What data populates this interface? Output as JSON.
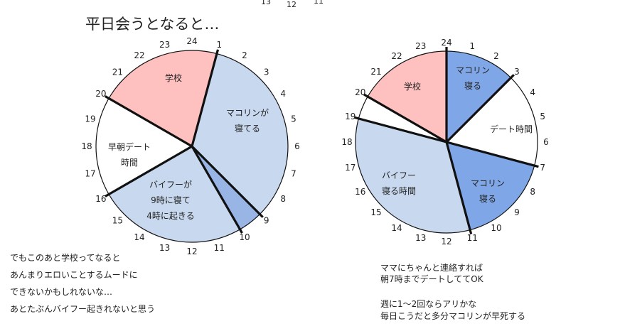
{
  "title": "平日会うとなると…",
  "top_numbers": [
    "13",
    "12",
    "11"
  ],
  "colors": {
    "pink": "#ffc0c0",
    "light_blue": "#c8d8ee",
    "blue": "#98b5e6",
    "strong_blue": "#7fa6e6",
    "white": "#ffffff",
    "line": "#111111"
  },
  "chart_data": [
    {
      "type": "pie",
      "title": "",
      "dial_hours": [
        "1",
        "2",
        "3",
        "4",
        "5",
        "6",
        "7",
        "8",
        "9",
        "10",
        "11",
        "12",
        "13",
        "14",
        "15",
        "16",
        "17",
        "18",
        "19",
        "20",
        "21",
        "22",
        "23",
        "24"
      ],
      "slices": [
        {
          "label": [
            "マコリンが",
            "寝てる"
          ],
          "start_hour": 1,
          "end_hour": 9,
          "color": "light_blue"
        },
        {
          "label": [],
          "start_hour": 9,
          "end_hour": 10,
          "color": "blue"
        },
        {
          "label": [
            "バイフーが",
            "9時に寝て",
            "4時に起きる"
          ],
          "start_hour": 10,
          "end_hour": 16,
          "color": "light_blue"
        },
        {
          "label": [
            "早朝デート",
            "時間"
          ],
          "start_hour": 16,
          "end_hour": 20,
          "color": "white"
        },
        {
          "label": [
            "学校"
          ],
          "start_hour": 20,
          "end_hour": 25,
          "color": "pink"
        }
      ],
      "divider_hours": [
        1,
        9,
        10,
        16,
        20
      ]
    },
    {
      "type": "pie",
      "title": "",
      "dial_hours": [
        "1",
        "2",
        "3",
        "4",
        "5",
        "6",
        "7",
        "8",
        "9",
        "10",
        "11",
        "12",
        "13",
        "14",
        "15",
        "16",
        "17",
        "18",
        "19",
        "20",
        "21",
        "22",
        "23",
        "24"
      ],
      "slices": [
        {
          "label": [
            "マコリン",
            "寝る"
          ],
          "start_hour": 0,
          "end_hour": 3,
          "color": "strong_blue"
        },
        {
          "label": [
            "デート時間"
          ],
          "start_hour": 3,
          "end_hour": 7,
          "color": "white"
        },
        {
          "label": [
            "マコリン",
            "寝る"
          ],
          "start_hour": 7,
          "end_hour": 11,
          "color": "strong_blue"
        },
        {
          "label": [
            "バイフー",
            "寝る時間"
          ],
          "start_hour": 11,
          "end_hour": 19,
          "color": "light_blue"
        },
        {
          "label": [],
          "start_hour": 19,
          "end_hour": 20,
          "color": "white"
        },
        {
          "label": [
            "学校"
          ],
          "start_hour": 20,
          "end_hour": 24,
          "color": "pink"
        }
      ],
      "divider_hours": [
        0,
        3,
        7,
        11,
        19,
        20
      ]
    }
  ],
  "notes_left": [
    "でもこのあと学校ってなると",
    "あんまりエロいことするムードに",
    "できないかもしれないな…",
    "あとたぶんバイフー起きれないと思う"
  ],
  "notes_right": [
    "ママにちゃんと連絡すれば",
    "朝7時までデートしててOK",
    "",
    "週に1～2回ならアリかな",
    "毎日こうだと多分マコリンが早死する"
  ]
}
